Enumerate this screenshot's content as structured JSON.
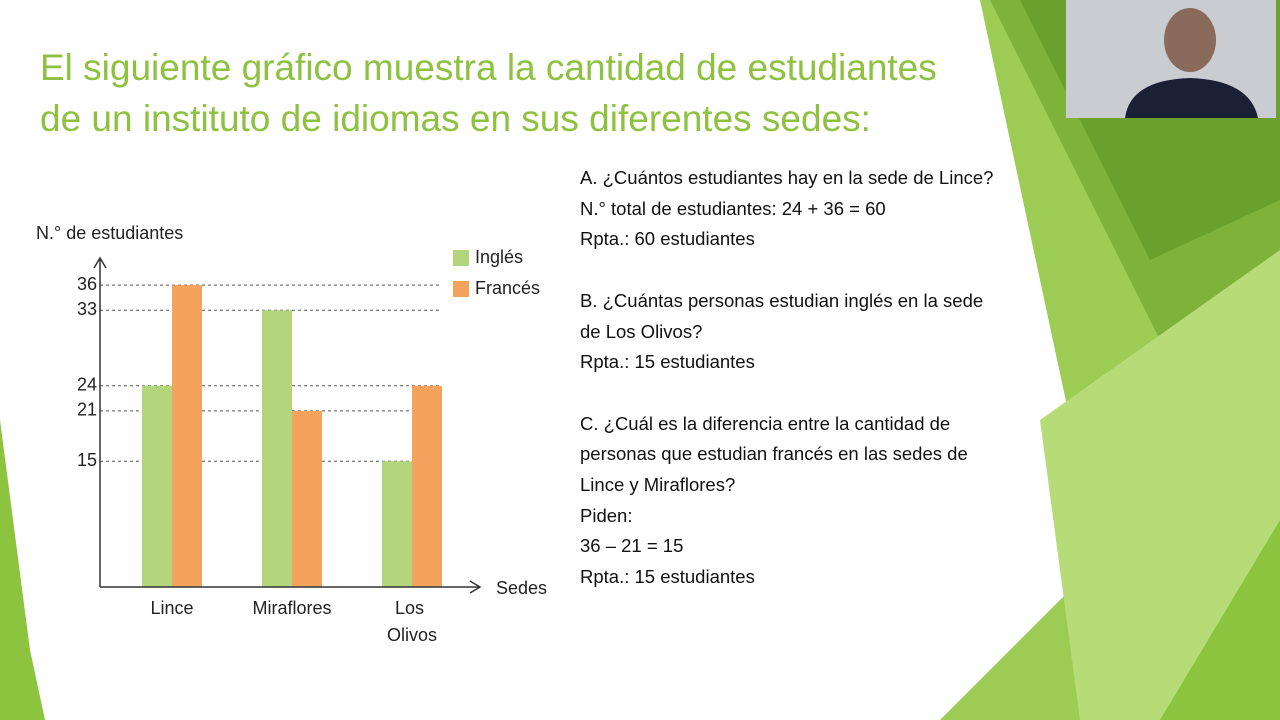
{
  "title": "El siguiente gráfico muestra la cantidad de estudiantes de un instituto de idiomas en sus diferentes sedes:",
  "questions": [
    [
      "A. ¿Cuántos estudiantes hay en la sede de Lince?",
      "N.° total de estudiantes: 24 + 36 = 60",
      "Rpta.: 60 estudiantes"
    ],
    [
      "B. ¿Cuántas personas estudian inglés en la sede de Los Olivos?",
      "Rpta.: 15 estudiantes"
    ],
    [
      "C. ¿Cuál es la diferencia entre la cantidad de personas que estudian francés en las sedes de Lince y Miraflores?",
      "Piden:",
      "36 – 21 = 15",
      "Rpta.: 15 estudiantes"
    ]
  ],
  "chart_data": {
    "type": "bar",
    "y_label": "N.° de estudiantes",
    "x_label": "Sedes",
    "categories": [
      "Lince",
      "Miraflores",
      "Los Olivos"
    ],
    "series": [
      {
        "name": "Inglés",
        "color": "#b3d57c",
        "values": [
          24,
          33,
          15
        ]
      },
      {
        "name": "Francés",
        "color": "#f5a35c",
        "values": [
          36,
          21,
          24
        ]
      }
    ],
    "ylim": [
      0,
      39
    ],
    "yticks": [
      15,
      21,
      24,
      33,
      36
    ],
    "grid": true,
    "legend": "top-right"
  }
}
